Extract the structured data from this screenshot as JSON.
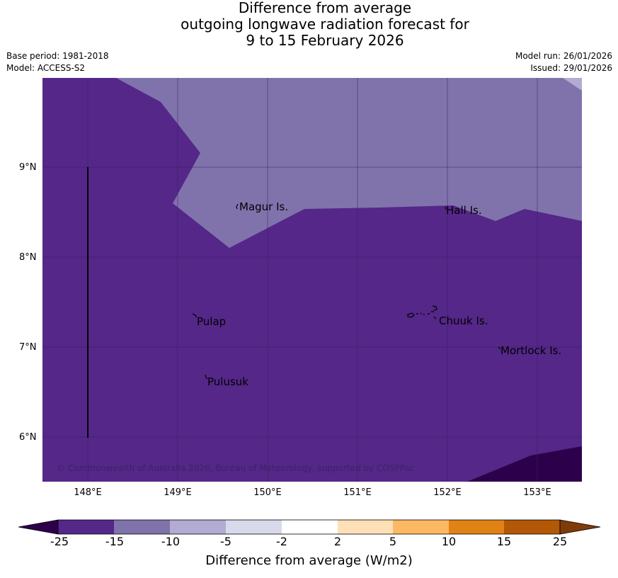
{
  "title": {
    "line1": "Difference from average",
    "line2": "outgoing longwave radiation forecast for",
    "line3": "9 to 15 February 2026"
  },
  "meta_left": {
    "base_period": "Base period: 1981-2018",
    "model": "Model: ACCESS-S2"
  },
  "meta_right": {
    "model_run": "Model run: 26/01/2026",
    "issued": "Issued: 29/01/2026"
  },
  "map": {
    "lat_labels": [
      "9°N",
      "8°N",
      "7°N",
      "6°N"
    ],
    "lon_labels": [
      "148°E",
      "149°E",
      "150°E",
      "151°E",
      "152°E",
      "153°E"
    ],
    "places": [
      "Magur Is.",
      "Hall Is.",
      "Pulap",
      "Chuuk Is.",
      "Mortlock Is.",
      "Pulusuk"
    ],
    "copyright": "© Commonwealth of Australia 2026, Bureau of Meteorology, supported by COSPPac"
  },
  "colorbar": {
    "ticks": [
      "-25",
      "-15",
      "-10",
      "-5",
      "-2",
      "2",
      "5",
      "10",
      "15",
      "25"
    ],
    "label": "Difference from average (W/m2)",
    "colors": [
      "#2d004b",
      "#542788",
      "#8073ac",
      "#b2abd2",
      "#d8daeb",
      "#ffffff",
      "#fee0b6",
      "#fdb863",
      "#e08214",
      "#b35806",
      "#7f3b08"
    ]
  }
}
